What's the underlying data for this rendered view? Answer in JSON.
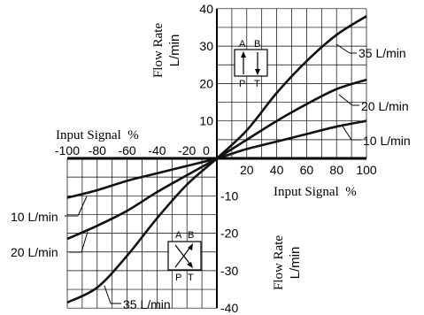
{
  "chart_data": {
    "type": "line",
    "xlim": [
      -100,
      100
    ],
    "ylim": [
      -40,
      40
    ],
    "grid": true,
    "x_axis_label_right": "Input Signal  %",
    "x_axis_label_left": "Input Signal  %",
    "y_axis_label_upper": [
      "Flow Rate",
      "L/min"
    ],
    "y_axis_label_lower": [
      "Flow Rate",
      "L/min"
    ],
    "x_ticks_positive": [
      "20",
      "40",
      "60",
      "80",
      "100"
    ],
    "x_ticks_negative": [
      "-100",
      "-80",
      "-60",
      "-40",
      "-20",
      "0"
    ],
    "y_ticks_positive": [
      "10",
      "20",
      "30",
      "40"
    ],
    "y_ticks_negative": [
      "-10",
      "-20",
      "-30",
      "-40"
    ],
    "series": [
      {
        "name": "35 L/min",
        "x": [
          -100,
          -80,
          -60,
          -40,
          -20,
          0,
          20,
          40,
          60,
          80,
          100
        ],
        "y": [
          -38.5,
          -34.5,
          -26,
          -16,
          -7,
          0,
          7.5,
          17.5,
          26,
          33,
          38
        ]
      },
      {
        "name": "20 L/min",
        "x": [
          -100,
          -80,
          -60,
          -40,
          -20,
          0,
          20,
          40,
          60,
          80,
          100
        ],
        "y": [
          -21.5,
          -18,
          -14,
          -9,
          -4.5,
          0,
          5,
          10,
          14.5,
          18.5,
          21
        ]
      },
      {
        "name": "10 L/min",
        "x": [
          -100,
          -80,
          -60,
          -40,
          -20,
          0,
          20,
          40,
          60,
          80,
          100
        ],
        "y": [
          -10.5,
          -8.5,
          -6,
          -4,
          -2,
          0,
          2.5,
          4.5,
          6.5,
          8.5,
          10
        ]
      }
    ],
    "annotations": {
      "upper": [
        "35 L/min",
        "20 L/min",
        "10 L/min"
      ],
      "lower": [
        "10 L/min",
        "20 L/min",
        "35 L/min"
      ]
    },
    "symbol_upper": {
      "a": "A",
      "b": "B",
      "p": "P",
      "t": "T"
    },
    "symbol_lower": {
      "a": "A",
      "b": "B",
      "p": "P",
      "t": "T"
    }
  }
}
